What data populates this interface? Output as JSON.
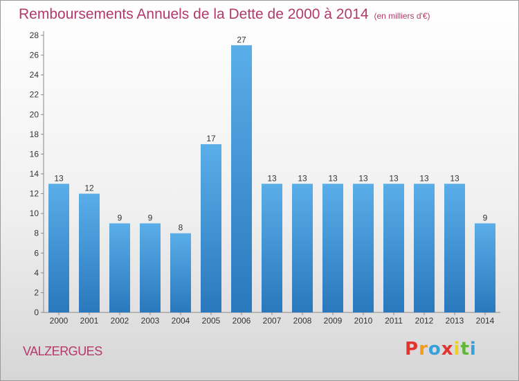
{
  "header": {
    "title": "Remboursements Annuels de la Dette de 2000 à 2014",
    "subtitle": "(en milliers d'€)"
  },
  "footer": {
    "town": "VALZERGUES",
    "logo_text": "Proxiti",
    "logo_colors": [
      "#e3352d",
      "#f39c1c",
      "#38a1db",
      "#e3352d",
      "#f3cf1d",
      "#5fb83a",
      "#38a1db"
    ]
  },
  "chart_data": {
    "type": "bar",
    "title": "Remboursements Annuels de la Dette de 2000 à 2014",
    "subtitle": "(en milliers d'€)",
    "categories": [
      "2000",
      "2001",
      "2002",
      "2003",
      "2004",
      "2005",
      "2006",
      "2007",
      "2008",
      "2009",
      "2010",
      "2011",
      "2012",
      "2013",
      "2014"
    ],
    "values": [
      13,
      12,
      9,
      9,
      8,
      17,
      27,
      13,
      13,
      13,
      13,
      13,
      13,
      13,
      9
    ],
    "ylim": [
      0,
      28
    ],
    "yticks": [
      0,
      2,
      4,
      6,
      8,
      10,
      12,
      14,
      16,
      18,
      20,
      22,
      24,
      26,
      28
    ],
    "grid": false,
    "bar_color_top": "#5aaee8",
    "bar_color_bottom": "#2a78bd",
    "xlabel": "",
    "ylabel": ""
  }
}
